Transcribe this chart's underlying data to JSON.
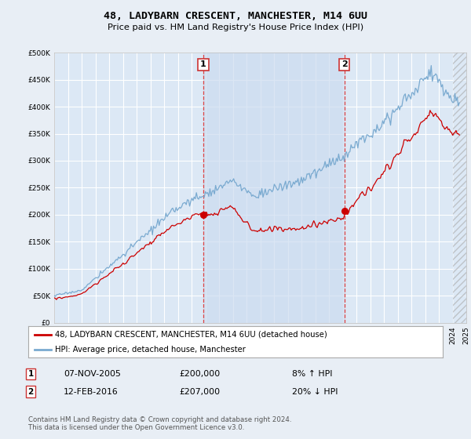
{
  "title": "48, LADYBARN CRESCENT, MANCHESTER, M14 6UU",
  "subtitle": "Price paid vs. HM Land Registry's House Price Index (HPI)",
  "legend_label_red": "48, LADYBARN CRESCENT, MANCHESTER, M14 6UU (detached house)",
  "legend_label_blue": "HPI: Average price, detached house, Manchester",
  "annotation1_date": "07-NOV-2005",
  "annotation1_price": "£200,000",
  "annotation1_hpi": "8% ↑ HPI",
  "annotation2_date": "12-FEB-2016",
  "annotation2_price": "£207,000",
  "annotation2_hpi": "20% ↓ HPI",
  "footnote": "Contains HM Land Registry data © Crown copyright and database right 2024.\nThis data is licensed under the Open Government Licence v3.0.",
  "ylim": [
    0,
    500000
  ],
  "yticks": [
    0,
    50000,
    100000,
    150000,
    200000,
    250000,
    300000,
    350000,
    400000,
    450000,
    500000
  ],
  "background_color": "#e8eef5",
  "plot_bg": "#dce8f5",
  "shade_bg": "#ccdcf0",
  "grid_color": "#ffffff",
  "red_color": "#cc0000",
  "blue_color": "#7aaad0",
  "sale1_x": 2005.85,
  "sale1_y": 200000,
  "sale2_x": 2016.12,
  "sale2_y": 207000,
  "xmin": 1995,
  "xmax": 2025,
  "seed": 17
}
